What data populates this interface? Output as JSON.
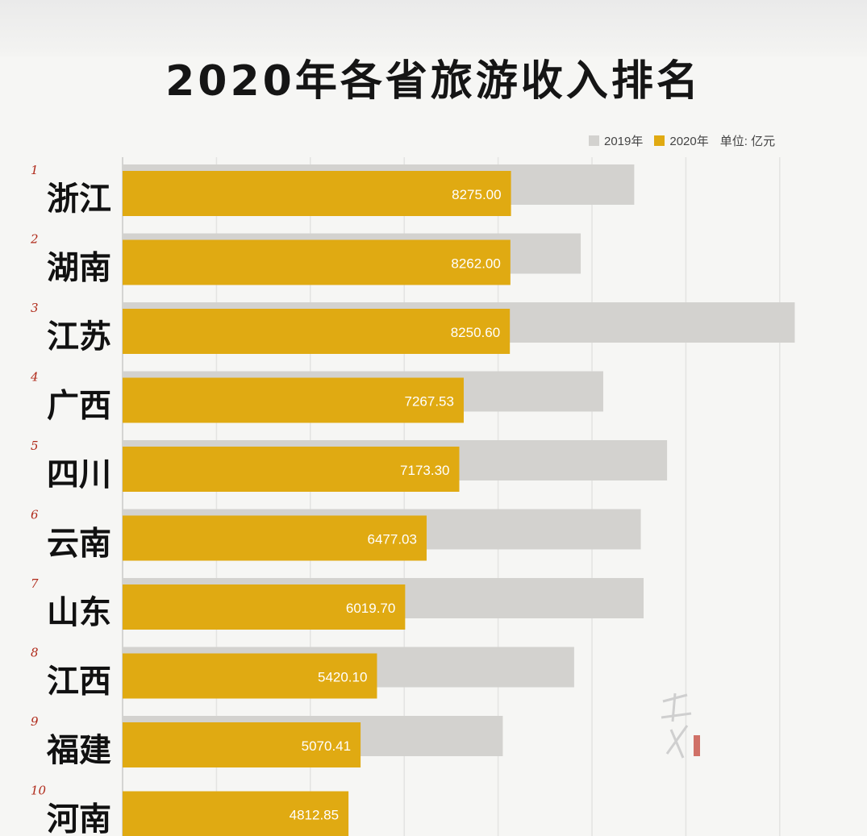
{
  "title": "2020年各省旅游收入排名",
  "legend": {
    "series_2019": "2019年",
    "series_2020": "2020年",
    "unit": "单位: 亿元"
  },
  "colors": {
    "series_2019": "#d3d2cf",
    "series_2020": "#e0aa12",
    "background": "#f6f6f4",
    "grid": "#e4e4e2",
    "rank": "#b02a1a"
  },
  "chart_data": {
    "type": "bar",
    "orientation": "horizontal",
    "title": "2020年各省旅游收入排名",
    "unit": "单位: 亿元",
    "legend_position": "top-right",
    "grid": true,
    "xlim": [
      0,
      23000
    ],
    "ranks": [
      "1",
      "2",
      "3",
      "4",
      "5",
      "6",
      "7",
      "8",
      "9",
      "10"
    ],
    "categories": [
      "浙江",
      "湖南",
      "江苏",
      "广西",
      "四川",
      "云南",
      "山东",
      "江西",
      "福建",
      "河南"
    ],
    "series": [
      {
        "name": "2019年",
        "values": [
          10900,
          9760,
          14320,
          10240,
          11600,
          11040,
          11100,
          9620,
          8100,
          null
        ]
      },
      {
        "name": "2020年",
        "values": [
          8275.0,
          8262.0,
          8250.6,
          7267.53,
          7173.3,
          6477.03,
          6019.7,
          5420.1,
          5070.41,
          4812.85
        ],
        "labels": [
          "8275.00",
          "8262.00",
          "8250.60",
          "7267.53",
          "7173.30",
          "6477.03",
          "6019.70",
          "5420.10",
          "5070.41",
          "4812.85"
        ]
      }
    ]
  }
}
